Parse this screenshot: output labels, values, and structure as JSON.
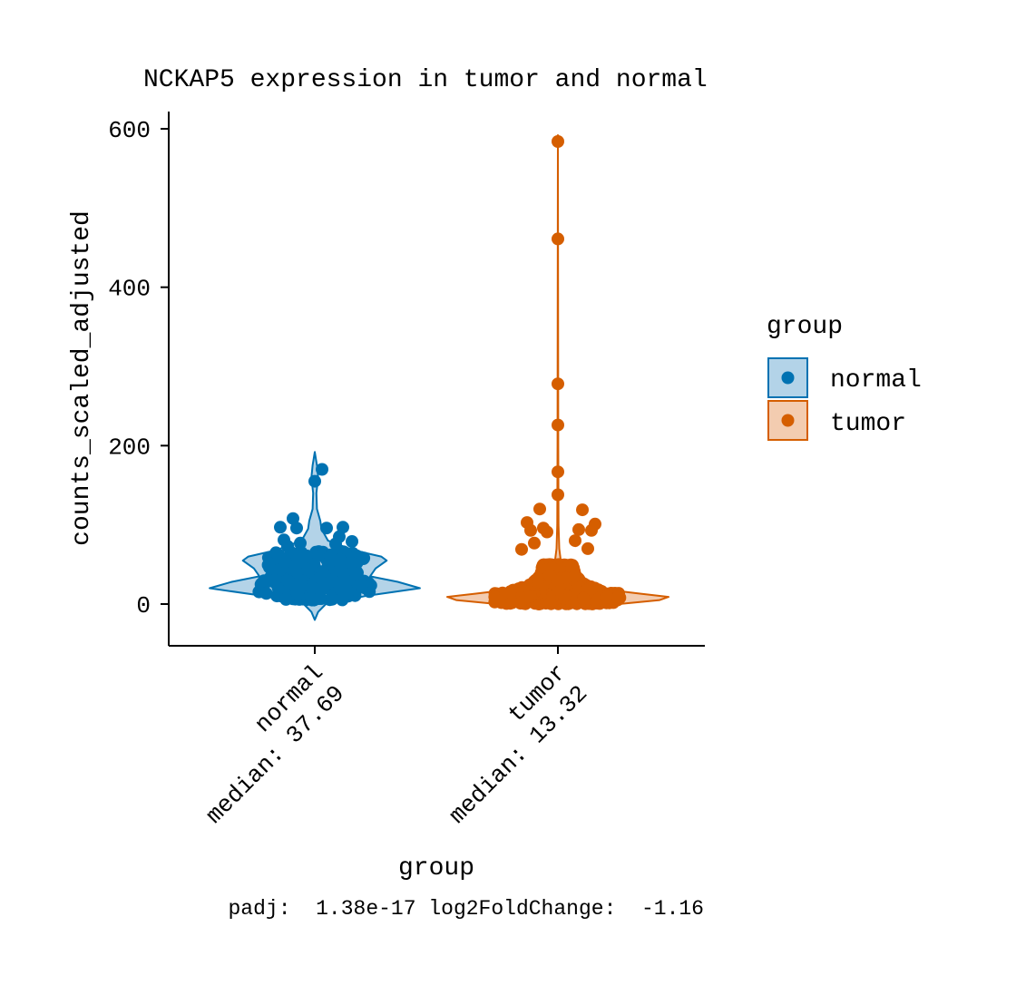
{
  "chart_data": {
    "type": "violin",
    "title": "NCKAP5 expression in tumor and normal",
    "xlabel": "group",
    "ylabel": "counts_scaled_adjusted",
    "ylim": [
      -52,
      622
    ],
    "yticks": [
      0,
      200,
      400,
      600
    ],
    "grid": false,
    "legend": {
      "title": "group",
      "position": "right",
      "entries": [
        "normal",
        "tumor"
      ]
    },
    "categories": [
      "normal",
      "tumor"
    ],
    "category_tick_labels": [
      {
        "line1": "normal",
        "line2": "median: 37.69"
      },
      {
        "line1": "tumor",
        "line2": "median: 13.32"
      }
    ],
    "colors": {
      "normal": {
        "point": "#0072B2",
        "fill": "#B3D3E8",
        "line": "#0072B2"
      },
      "tumor": {
        "point": "#D55E00",
        "fill": "#F3CCB0",
        "line": "#D55E00"
      }
    },
    "series": [
      {
        "name": "normal",
        "median": 37.69,
        "range": [
          -20,
          192
        ],
        "density": [
          [
            -20,
            0.0
          ],
          [
            -10,
            0.03
          ],
          [
            0,
            0.1
          ],
          [
            10,
            0.45
          ],
          [
            20,
            0.95
          ],
          [
            28,
            0.75
          ],
          [
            35,
            0.5
          ],
          [
            45,
            0.55
          ],
          [
            55,
            0.65
          ],
          [
            60,
            0.6
          ],
          [
            68,
            0.35
          ],
          [
            80,
            0.12
          ],
          [
            95,
            0.06
          ],
          [
            105,
            0.05
          ],
          [
            120,
            0.02
          ],
          [
            140,
            0.015
          ],
          [
            160,
            0.03
          ],
          [
            175,
            0.02
          ],
          [
            192,
            0.0
          ]
        ],
        "notable_points": [
          170,
          155,
          108,
          97,
          97,
          96,
          96,
          85,
          81,
          79,
          77,
          76,
          73
        ]
      },
      {
        "name": "tumor",
        "median": 13.32,
        "range": [
          -5,
          592
        ],
        "density": [
          [
            -5,
            0.0
          ],
          [
            0,
            0.55
          ],
          [
            5,
            0.92
          ],
          [
            9,
            1.0
          ],
          [
            13,
            0.75
          ],
          [
            18,
            0.45
          ],
          [
            25,
            0.2
          ],
          [
            35,
            0.08
          ],
          [
            50,
            0.03
          ],
          [
            70,
            0.012
          ],
          [
            100,
            0.006
          ],
          [
            200,
            0.003
          ],
          [
            400,
            0.002
          ],
          [
            592,
            0.0
          ]
        ],
        "notable_points": [
          584,
          461,
          278,
          226,
          167,
          138,
          120,
          119,
          103,
          101,
          96,
          94,
          93,
          93,
          91,
          80,
          77,
          70,
          69
        ]
      }
    ],
    "annotations": {
      "caption": "padj:  1.38e-17 log2FoldChange:  -1.16"
    }
  }
}
